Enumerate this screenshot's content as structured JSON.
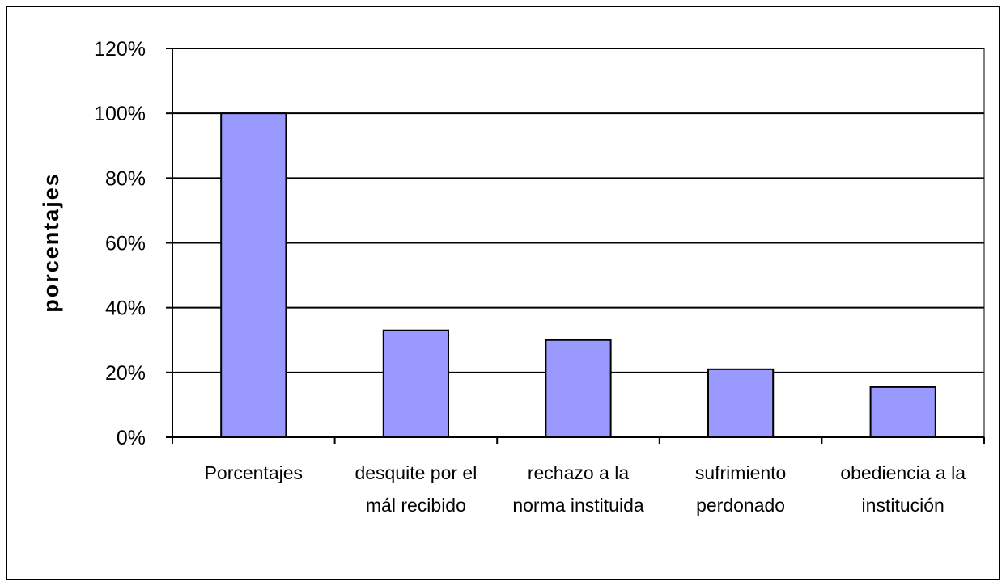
{
  "chart_data": {
    "type": "bar",
    "y_label": "porcentajes",
    "categories": [
      "Porcentajes",
      "desquite por el mál recibido",
      "rechazo a la norma instituida",
      "sufrimiento perdonado",
      "obediencia a la institución"
    ],
    "values": [
      100,
      33,
      30,
      21,
      15.5
    ],
    "color": "#9999ff",
    "ylim": [
      0,
      120
    ],
    "yticks": [
      {
        "value": 0,
        "label": "0%"
      },
      {
        "value": 20,
        "label": "20%"
      },
      {
        "value": 40,
        "label": "40%"
      },
      {
        "value": 60,
        "label": "60%"
      },
      {
        "value": 80,
        "label": "80%"
      },
      {
        "value": 100,
        "label": "100%"
      },
      {
        "value": 120,
        "label": "120%"
      }
    ],
    "grid": true
  }
}
